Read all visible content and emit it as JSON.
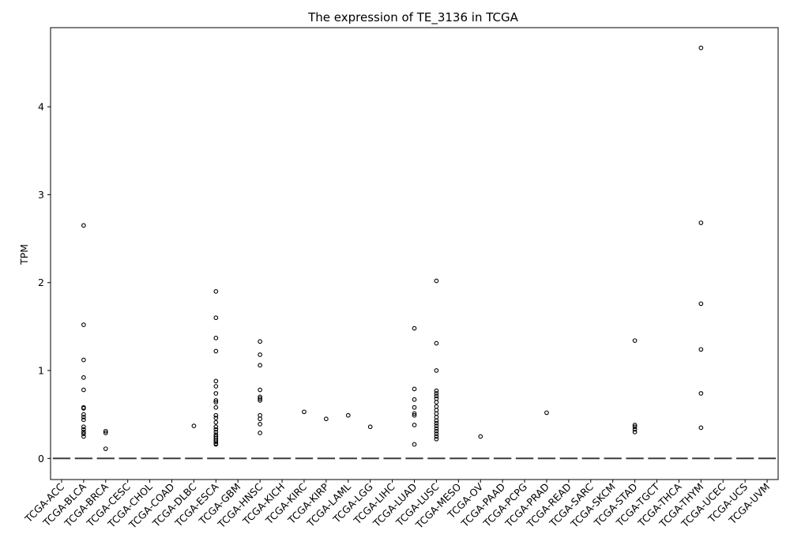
{
  "chart_data": {
    "type": "box",
    "title": "The expression of TE_3136 in TCGA",
    "xlabel": "",
    "ylabel": "TPM",
    "ylim": [
      -0.24,
      4.9
    ],
    "yticks": [
      0,
      1,
      2,
      3,
      4
    ],
    "grid": false,
    "legend": "none",
    "categories": [
      "TCGA-ACC",
      "TCGA-BLCA",
      "TCGA-BRCA",
      "TCGA-CESC",
      "TCGA-CHOL",
      "TCGA-COAD",
      "TCGA-DLBC",
      "TCGA-ESCA",
      "TCGA-GBM",
      "TCGA-HNSC",
      "TCGA-KICH",
      "TCGA-KIRC",
      "TCGA-KIRP",
      "TCGA-LAML",
      "TCGA-LGG",
      "TCGA-LIHC",
      "TCGA-LUAD",
      "TCGA-LUSC",
      "TCGA-MESO",
      "TCGA-OV",
      "TCGA-PAAD",
      "TCGA-PCPG",
      "TCGA-PRAD",
      "TCGA-READ",
      "TCGA-SARC",
      "TCGA-SKCM",
      "TCGA-STAD",
      "TCGA-TGCT",
      "TCGA-THCA",
      "TCGA-THYM",
      "TCGA-UCEC",
      "TCGA-UCS",
      "TCGA-UVM"
    ],
    "median": 0,
    "outliers": [
      [],
      [
        2.65,
        1.52,
        1.12,
        0.92,
        0.78,
        0.58,
        0.57,
        0.5,
        0.47,
        0.44,
        0.36,
        0.33,
        0.3,
        0.28,
        0.25
      ],
      [
        0.31,
        0.29,
        0.11
      ],
      [],
      [],
      [],
      [
        0.37
      ],
      [
        1.9,
        1.6,
        1.37,
        1.22,
        0.88,
        0.82,
        0.74,
        0.66,
        0.64,
        0.58,
        0.49,
        0.46,
        0.41,
        0.36,
        0.33,
        0.3,
        0.27,
        0.25,
        0.23,
        0.21,
        0.19,
        0.17,
        0.16
      ],
      [],
      [
        1.33,
        1.18,
        1.06,
        0.78,
        0.7,
        0.68,
        0.66,
        0.49,
        0.45,
        0.39,
        0.29
      ],
      [],
      [
        0.53
      ],
      [
        0.45
      ],
      [
        0.49
      ],
      [
        0.36
      ],
      [],
      [
        1.48,
        0.79,
        0.67,
        0.58,
        0.51,
        0.49,
        0.38,
        0.16
      ],
      [
        2.02,
        1.31,
        1.0,
        0.77,
        0.74,
        0.71,
        0.68,
        0.64,
        0.59,
        0.55,
        0.51,
        0.47,
        0.43,
        0.4,
        0.37,
        0.34,
        0.31,
        0.28,
        0.25,
        0.22
      ],
      [],
      [
        0.25
      ],
      [],
      [],
      [
        0.52
      ],
      [],
      [],
      [],
      [
        1.34,
        0.38,
        0.36,
        0.33,
        0.3
      ],
      [],
      [],
      [
        4.67,
        2.68,
        1.76,
        1.24,
        0.74,
        0.35
      ],
      [],
      [],
      []
    ]
  }
}
